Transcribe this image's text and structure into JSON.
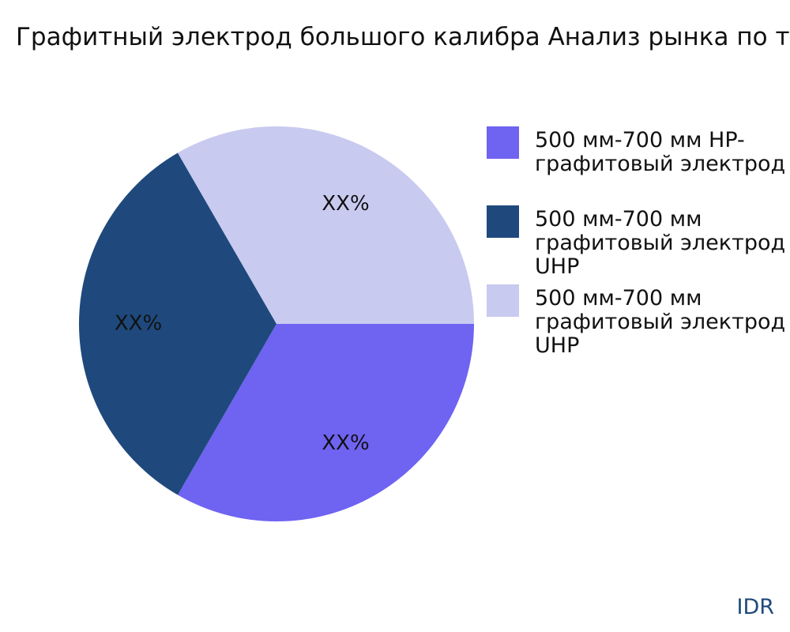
{
  "chart_data": {
    "type": "pie",
    "title": "Графитный электрод большого калибра Анализ рынка по типу",
    "categories": [
      "500 мм-700 мм HP-графитовый электрод",
      "500 мм-700 мм графитовый электрод UHP",
      "500 мм-700 мм графитовый электрод UHP"
    ],
    "values": [
      33.3,
      33.3,
      33.3
    ],
    "value_labels": [
      "XX%",
      "XX%",
      "XX%"
    ],
    "colors": [
      "#6f63f2",
      "#1f497d",
      "#c9caf0"
    ],
    "source": "IDR"
  }
}
